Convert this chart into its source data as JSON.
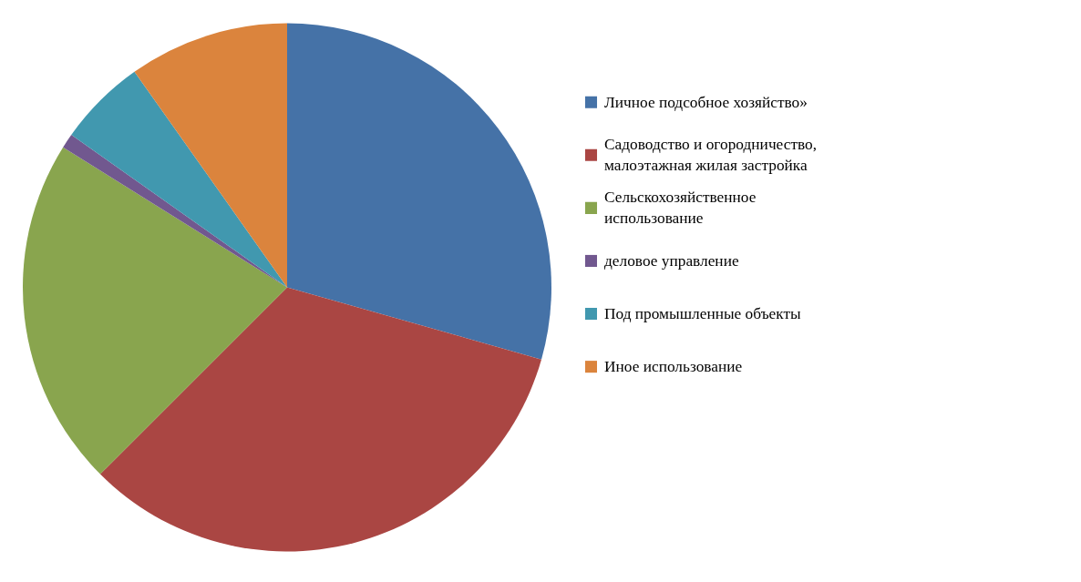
{
  "chart_data": {
    "type": "pie",
    "categories": [
      "Личное подсобное хозяйство»",
      "Садоводство и огородничество, малоэтажная жилая застройка",
      "Сельскохозяйственное использование",
      "деловое управление",
      "Под промышленные объекты",
      "Иное использование"
    ],
    "values": [
      29.4,
      33.1,
      21.4,
      0.9,
      5.4,
      9.8
    ],
    "colors": [
      "#4572a7",
      "#aa4643",
      "#89a54e",
      "#71588f",
      "#4198af",
      "#db843d"
    ],
    "legend": "right"
  }
}
